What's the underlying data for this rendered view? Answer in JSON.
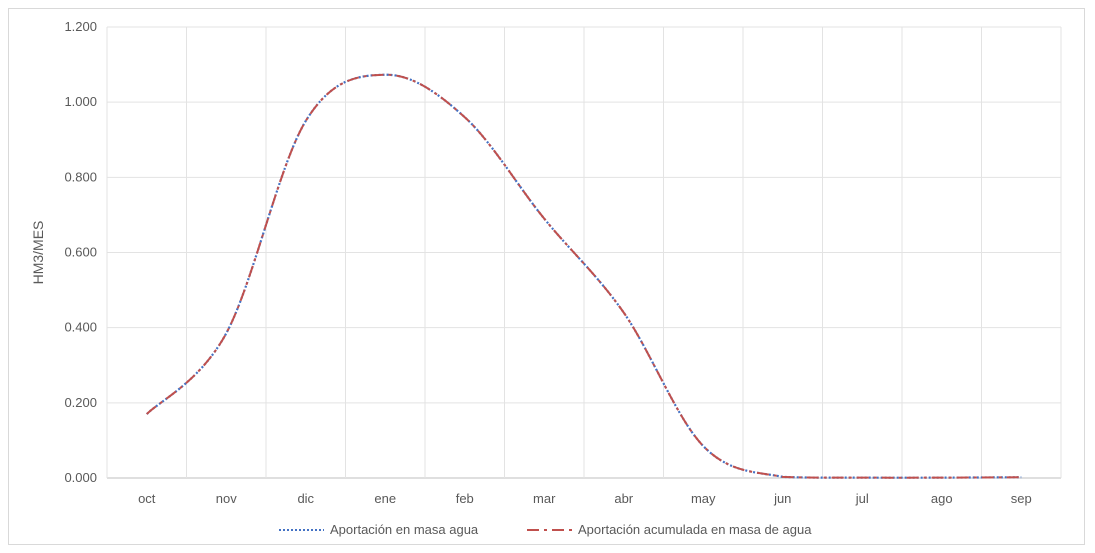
{
  "chart_data": {
    "type": "line",
    "title": "",
    "xlabel": "",
    "ylabel": "HM3/MES",
    "categories": [
      "oct",
      "nov",
      "dic",
      "ene",
      "feb",
      "mar",
      "abr",
      "may",
      "jun",
      "jul",
      "ago",
      "sep"
    ],
    "ylim": [
      0,
      1.2
    ],
    "yticks": [
      "0.000",
      "0.200",
      "0.400",
      "0.600",
      "0.800",
      "1.000",
      "1.200"
    ],
    "ytick_values": [
      0,
      0.2,
      0.4,
      0.6,
      0.8,
      1.0,
      1.2
    ],
    "grid": true,
    "legend_position": "bottom",
    "series": [
      {
        "name": "Aportación en masa agua",
        "values": [
          0.17,
          0.385,
          0.95,
          1.073,
          0.96,
          0.69,
          0.44,
          0.085,
          0.003,
          0.001,
          0.001,
          0.002
        ],
        "color": "#4472C4",
        "dash": "dotted"
      },
      {
        "name": "Aportación acumulada en masa de agua",
        "values": [
          0.17,
          0.385,
          0.95,
          1.073,
          0.96,
          0.69,
          0.44,
          0.085,
          0.003,
          0.001,
          0.001,
          0.002
        ],
        "color": "#C0504D",
        "dash": "dash-dot"
      }
    ]
  }
}
